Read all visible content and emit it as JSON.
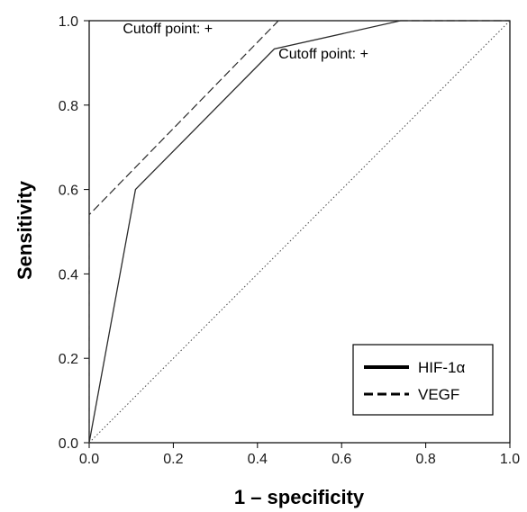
{
  "chart_data": {
    "type": "line",
    "title": "",
    "xlabel": "1 – specificity",
    "ylabel": "Sensitivity",
    "xlim": [
      0.0,
      1.0
    ],
    "ylim": [
      0.0,
      1.0
    ],
    "xticks": [
      "0.0",
      "0.2",
      "0.4",
      "0.6",
      "0.8",
      "1.0"
    ],
    "yticks": [
      "0.0",
      "0.2",
      "0.4",
      "0.6",
      "0.8",
      "1.0"
    ],
    "grid": false,
    "legend_position": "bottom-right",
    "series": [
      {
        "name": "HIF-1α",
        "style": "solid",
        "x": [
          0.0,
          0.11,
          0.44,
          0.74,
          1.0
        ],
        "y": [
          0.0,
          0.6,
          0.933,
          1.0,
          1.0
        ]
      },
      {
        "name": "VEGF",
        "style": "dashed",
        "x": [
          0.0,
          0.0,
          0.45,
          1.0
        ],
        "y": [
          0.0,
          0.54,
          1.0,
          1.0
        ]
      },
      {
        "style": "dotted",
        "x": [
          0.0,
          1.0
        ],
        "y": [
          0.0,
          1.0
        ]
      }
    ],
    "annotations": [
      {
        "text": "Cutoff point: +",
        "x": 0.08,
        "y": 0.97
      },
      {
        "text": "Cutoff point: +",
        "x": 0.45,
        "y": 0.91
      }
    ]
  }
}
